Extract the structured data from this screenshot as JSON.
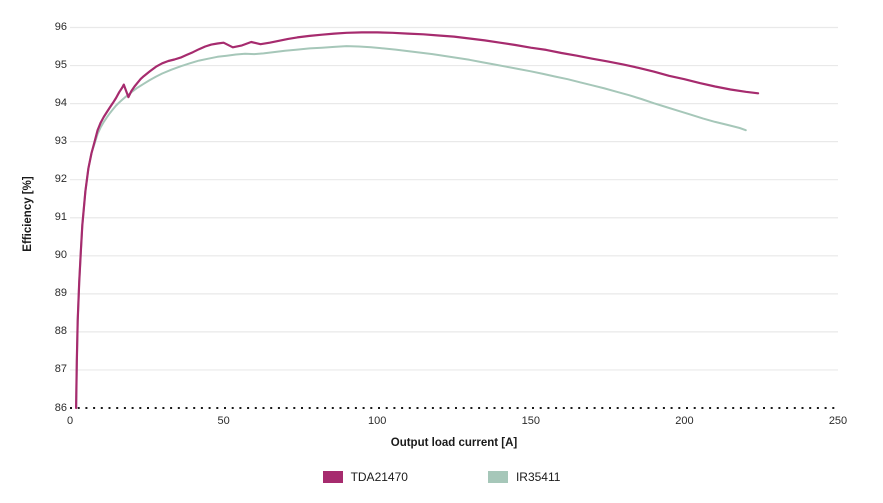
{
  "chart_data": {
    "type": "line",
    "title": "",
    "xlabel": "Output load current [A]",
    "ylabel": "Efficiency [%]",
    "xlim": [
      0,
      250
    ],
    "ylim": [
      86,
      96
    ],
    "xticks": [
      0,
      50,
      100,
      150,
      200,
      250
    ],
    "yticks": [
      86,
      87,
      88,
      89,
      90,
      91,
      92,
      93,
      94,
      95,
      96
    ],
    "grid": "horizontal-only",
    "gridline_color": "#e9e9e9",
    "baseline": {
      "value": 86,
      "style": "dotted",
      "color": "#1a1a1a"
    },
    "legend_position": "bottom-center",
    "series": [
      {
        "name": "TDA21470",
        "color": "#A62B6E",
        "stroke_width": 2.2,
        "points": [
          [
            2,
            86.0
          ],
          [
            2.2,
            87.2
          ],
          [
            2.5,
            88.3
          ],
          [
            3,
            89.3
          ],
          [
            3.5,
            90.1
          ],
          [
            4,
            90.8
          ],
          [
            5,
            91.7
          ],
          [
            6,
            92.3
          ],
          [
            7,
            92.7
          ],
          [
            8,
            93.0
          ],
          [
            9,
            93.3
          ],
          [
            10,
            93.5
          ],
          [
            11,
            93.65
          ],
          [
            12,
            93.78
          ],
          [
            13,
            93.9
          ],
          [
            14,
            94.02
          ],
          [
            15,
            94.15
          ],
          [
            16,
            94.3
          ],
          [
            17,
            94.42
          ],
          [
            17.5,
            94.5
          ],
          [
            19,
            94.17
          ],
          [
            20,
            94.33
          ],
          [
            21,
            94.45
          ],
          [
            22,
            94.55
          ],
          [
            23,
            94.65
          ],
          [
            24,
            94.72
          ],
          [
            26,
            94.85
          ],
          [
            28,
            94.97
          ],
          [
            30,
            95.06
          ],
          [
            32,
            95.12
          ],
          [
            34,
            95.16
          ],
          [
            36,
            95.21
          ],
          [
            38,
            95.28
          ],
          [
            40,
            95.35
          ],
          [
            42,
            95.43
          ],
          [
            44,
            95.5
          ],
          [
            46,
            95.55
          ],
          [
            48,
            95.58
          ],
          [
            50,
            95.6
          ],
          [
            53,
            95.48
          ],
          [
            56,
            95.53
          ],
          [
            59,
            95.62
          ],
          [
            62,
            95.56
          ],
          [
            65,
            95.6
          ],
          [
            68,
            95.65
          ],
          [
            71,
            95.7
          ],
          [
            74,
            95.74
          ],
          [
            78,
            95.78
          ],
          [
            82,
            95.81
          ],
          [
            86,
            95.84
          ],
          [
            90,
            95.86
          ],
          [
            95,
            95.87
          ],
          [
            100,
            95.87
          ],
          [
            105,
            95.86
          ],
          [
            110,
            95.84
          ],
          [
            115,
            95.82
          ],
          [
            120,
            95.79
          ],
          [
            125,
            95.76
          ],
          [
            130,
            95.71
          ],
          [
            135,
            95.66
          ],
          [
            140,
            95.6
          ],
          [
            145,
            95.54
          ],
          [
            150,
            95.47
          ],
          [
            155,
            95.41
          ],
          [
            160,
            95.33
          ],
          [
            165,
            95.26
          ],
          [
            170,
            95.18
          ],
          [
            175,
            95.11
          ],
          [
            180,
            95.03
          ],
          [
            185,
            94.94
          ],
          [
            190,
            94.84
          ],
          [
            195,
            94.73
          ],
          [
            200,
            94.64
          ],
          [
            205,
            94.54
          ],
          [
            210,
            94.45
          ],
          [
            215,
            94.37
          ],
          [
            220,
            94.31
          ],
          [
            224,
            94.27
          ]
        ]
      },
      {
        "name": "IR35411",
        "color": "#A6C7B9",
        "stroke_width": 2,
        "points": [
          [
            2,
            86.0
          ],
          [
            2.2,
            87.2
          ],
          [
            2.5,
            88.3
          ],
          [
            3,
            89.3
          ],
          [
            3.5,
            90.1
          ],
          [
            4,
            90.8
          ],
          [
            5,
            91.7
          ],
          [
            6,
            92.3
          ],
          [
            7,
            92.7
          ],
          [
            8,
            92.95
          ],
          [
            9,
            93.2
          ],
          [
            10,
            93.38
          ],
          [
            11,
            93.52
          ],
          [
            12,
            93.64
          ],
          [
            13,
            93.75
          ],
          [
            14,
            93.85
          ],
          [
            15,
            93.95
          ],
          [
            16,
            94.03
          ],
          [
            17,
            94.1
          ],
          [
            18,
            94.17
          ],
          [
            19,
            94.23
          ],
          [
            20,
            94.3
          ],
          [
            22,
            94.42
          ],
          [
            24,
            94.52
          ],
          [
            26,
            94.62
          ],
          [
            28,
            94.71
          ],
          [
            30,
            94.79
          ],
          [
            33,
            94.89
          ],
          [
            36,
            94.98
          ],
          [
            39,
            95.06
          ],
          [
            42,
            95.13
          ],
          [
            45,
            95.18
          ],
          [
            48,
            95.23
          ],
          [
            51,
            95.26
          ],
          [
            54,
            95.29
          ],
          [
            57,
            95.31
          ],
          [
            60,
            95.3
          ],
          [
            63,
            95.32
          ],
          [
            66,
            95.35
          ],
          [
            70,
            95.39
          ],
          [
            74,
            95.42
          ],
          [
            78,
            95.45
          ],
          [
            82,
            95.47
          ],
          [
            86,
            95.49
          ],
          [
            90,
            95.51
          ],
          [
            94,
            95.5
          ],
          [
            98,
            95.48
          ],
          [
            102,
            95.45
          ],
          [
            106,
            95.42
          ],
          [
            110,
            95.38
          ],
          [
            114,
            95.34
          ],
          [
            118,
            95.3
          ],
          [
            122,
            95.25
          ],
          [
            126,
            95.2
          ],
          [
            130,
            95.15
          ],
          [
            134,
            95.09
          ],
          [
            138,
            95.03
          ],
          [
            142,
            94.97
          ],
          [
            146,
            94.91
          ],
          [
            150,
            94.85
          ],
          [
            154,
            94.78
          ],
          [
            158,
            94.71
          ],
          [
            162,
            94.64
          ],
          [
            166,
            94.56
          ],
          [
            170,
            94.48
          ],
          [
            174,
            94.4
          ],
          [
            178,
            94.31
          ],
          [
            182,
            94.22
          ],
          [
            186,
            94.12
          ],
          [
            190,
            94.01
          ],
          [
            194,
            93.91
          ],
          [
            198,
            93.81
          ],
          [
            202,
            93.71
          ],
          [
            206,
            93.61
          ],
          [
            210,
            93.52
          ],
          [
            214,
            93.44
          ],
          [
            218,
            93.36
          ],
          [
            220,
            93.3
          ]
        ]
      }
    ]
  },
  "legend": {
    "items": [
      {
        "label": "TDA21470",
        "color": "#A62B6E"
      },
      {
        "label": "IR35411",
        "color": "#A6C7B9"
      }
    ]
  },
  "colors": {
    "text": "#2b2b2b",
    "axis_title": "#1a1a1a",
    "gridline": "#e9e9e9",
    "background": "#ffffff"
  }
}
